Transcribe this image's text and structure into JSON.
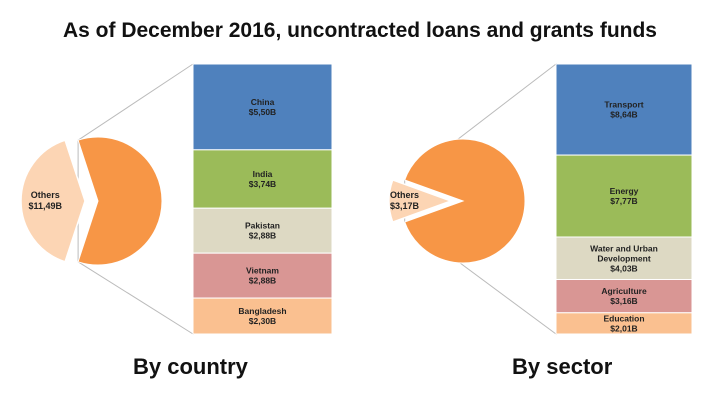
{
  "title": "As of December 2016, uncontracted loans and grants funds",
  "colors": {
    "pie_main": "#F79646",
    "pie_others": "#FCD5B4",
    "bar_palette": [
      "#4F81BD",
      "#9BBB59",
      "#DDD9C3",
      "#D99694",
      "#FAC090"
    ],
    "wedge_fill": "#FFFFFF",
    "wedge_stroke": "#BBBBBB"
  },
  "chart_data": [
    {
      "type": "bar-of-pie",
      "caption": "By country",
      "pie": {
        "others_label": "Others",
        "others_value": "$11,49B",
        "others_amount": 11.49
      },
      "bar": {
        "categories": [
          "China",
          "India",
          "Pakistan",
          "Vietnam",
          "Bangladesh"
        ],
        "values": [
          5.5,
          3.74,
          2.88,
          2.88,
          2.3
        ],
        "value_labels": [
          "$5,50B",
          "$3,74B",
          "$2,88B",
          "$2,88B",
          "$2,30B"
        ]
      }
    },
    {
      "type": "bar-of-pie",
      "caption": "By sector",
      "pie": {
        "others_label": "Others",
        "others_value": "$3,17B",
        "others_amount": 3.17
      },
      "bar": {
        "categories": [
          "Transport",
          "Energy",
          "Water and Urban Development",
          "Agriculture",
          "Education"
        ],
        "values": [
          8.64,
          7.77,
          4.03,
          3.16,
          2.01
        ],
        "value_labels": [
          "$8,64B",
          "$7,77B",
          "$4,03B",
          "$3,16B",
          "$2,01B"
        ]
      }
    }
  ]
}
